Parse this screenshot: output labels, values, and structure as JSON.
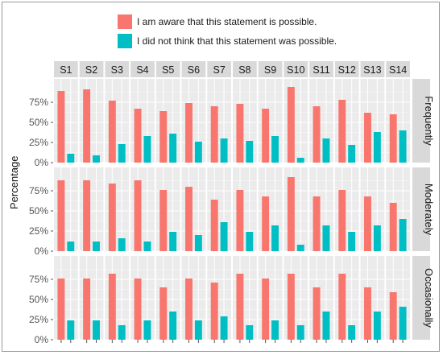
{
  "legend": {
    "aware_label": "I am aware that this statement is possible.",
    "notthink_label": "I did not think that this statement was possible."
  },
  "colors": {
    "aware": "#F8766D",
    "notthink": "#00BFC4",
    "panel_bg": "#EBEBEB",
    "strip_bg": "#D9D9D9",
    "grid": "#FFFFFF"
  },
  "chart_data": {
    "type": "bar",
    "ylabel": "Percentage",
    "ylim": [
      0,
      100
    ],
    "y_ticks": [
      "0%",
      "25%",
      "50%",
      "75%"
    ],
    "categories": [
      "S1",
      "S2",
      "S3",
      "S4",
      "S5",
      "S6",
      "S7",
      "S8",
      "S9",
      "S10",
      "S11",
      "S12",
      "S13",
      "S14"
    ],
    "legend_placement": "top",
    "grid": true,
    "panels": [
      {
        "name": "Frequently",
        "series": [
          {
            "name": "I am aware that this statement is possible.",
            "values": [
              89,
              91,
              77,
              67,
              64,
              74,
              70,
              73,
              67,
              94,
              70,
              78,
              62,
              60
            ]
          },
          {
            "name": "I did not think that this statement was possible.",
            "values": [
              11,
              9,
              23,
              33,
              36,
              26,
              30,
              27,
              33,
              6,
              30,
              22,
              38,
              40
            ]
          }
        ]
      },
      {
        "name": "Moderately",
        "series": [
          {
            "name": "I am aware that this statement is possible.",
            "values": [
              88,
              88,
              84,
              88,
              76,
              80,
              64,
              76,
              68,
              92,
              68,
              76,
              68,
              60
            ]
          },
          {
            "name": "I did not think that this statement was possible.",
            "values": [
              12,
              12,
              16,
              12,
              24,
              20,
              36,
              24,
              32,
              8,
              32,
              24,
              32,
              40
            ]
          }
        ]
      },
      {
        "name": "Occasionally",
        "series": [
          {
            "name": "I am aware that this statement is possible.",
            "values": [
              76,
              76,
              82,
              76,
              65,
              76,
              71,
              82,
              76,
              82,
              65,
              82,
              65,
              59
            ]
          },
          {
            "name": "I did not think that this statement was possible.",
            "values": [
              24,
              24,
              18,
              24,
              35,
              24,
              29,
              18,
              24,
              18,
              35,
              18,
              35,
              41
            ]
          }
        ]
      }
    ]
  }
}
